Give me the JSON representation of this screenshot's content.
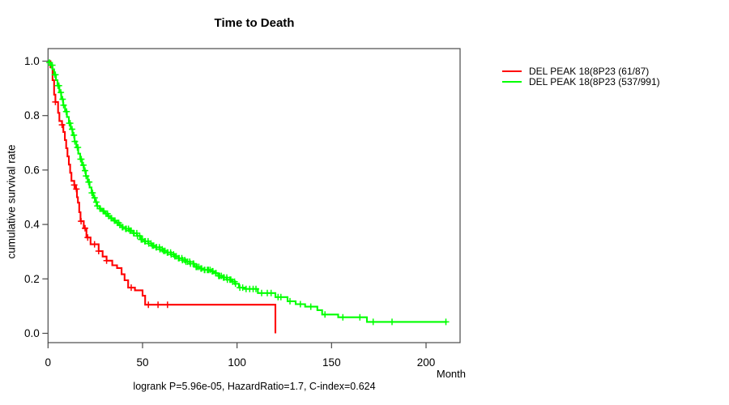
{
  "chart_data": {
    "type": "line",
    "subtype": "kaplan-meier-step",
    "title": "Time to Death",
    "xlabel": "Month",
    "ylabel": "cumulative survival rate",
    "footnote": "logrank P=5.96e-05, HazardRatio=1.7, C-index=0.624",
    "xlim": [
      0,
      218
    ],
    "ylim": [
      0,
      1
    ],
    "x_ticks": [
      0,
      50,
      100,
      150,
      200
    ],
    "y_ticks": [
      0.0,
      0.2,
      0.4,
      0.6,
      0.8,
      1.0
    ],
    "grid": false,
    "legend_position": "right-outside",
    "axis_color": "#4a4a4a",
    "series": [
      {
        "name": "DEL PEAK 18(8P23 (61/87)",
        "color": "#ff0000",
        "steps": [
          [
            0,
            1
          ],
          [
            1.3,
            0.977
          ],
          [
            2.4,
            0.93
          ],
          [
            3.2,
            0.877
          ],
          [
            3.9,
            0.85
          ],
          [
            5.3,
            0.81
          ],
          [
            6,
            0.78
          ],
          [
            7.4,
            0.766
          ],
          [
            8.1,
            0.74
          ],
          [
            8.9,
            0.71
          ],
          [
            9.6,
            0.68
          ],
          [
            10.3,
            0.65
          ],
          [
            11,
            0.62
          ],
          [
            11.7,
            0.59
          ],
          [
            12.4,
            0.56
          ],
          [
            13.9,
            0.545
          ],
          [
            14.6,
            0.53
          ],
          [
            15.3,
            0.5
          ],
          [
            15.8,
            0.48
          ],
          [
            16.5,
            0.445
          ],
          [
            17.2,
            0.412
          ],
          [
            18.9,
            0.386
          ],
          [
            20.3,
            0.352
          ],
          [
            22.5,
            0.327
          ],
          [
            26.8,
            0.302
          ],
          [
            28.9,
            0.282
          ],
          [
            31,
            0.267
          ],
          [
            34,
            0.25
          ],
          [
            36.5,
            0.24
          ],
          [
            38.9,
            0.217
          ],
          [
            40.5,
            0.195
          ],
          [
            42.4,
            0.168
          ],
          [
            46,
            0.158
          ],
          [
            50,
            0.138
          ],
          [
            51.4,
            0.105
          ],
          [
            120.3,
            0
          ]
        ],
        "censor_times": [
          3.9,
          7.4,
          13.9,
          15,
          17.5,
          19.6,
          21,
          24.6,
          26.8,
          31,
          44,
          53.1,
          58.2,
          63.2
        ]
      },
      {
        "name": "DEL PEAK 18(8P23 (537/991)",
        "color": "#00ff00",
        "steps": [
          [
            0,
            1
          ],
          [
            0.7,
            0.995
          ],
          [
            1.5,
            0.985
          ],
          [
            2.3,
            0.97
          ],
          [
            3.2,
            0.95
          ],
          [
            4.2,
            0.93
          ],
          [
            5,
            0.91
          ],
          [
            6,
            0.885
          ],
          [
            7,
            0.86
          ],
          [
            8,
            0.838
          ],
          [
            9,
            0.815
          ],
          [
            10,
            0.795
          ],
          [
            11,
            0.772
          ],
          [
            12,
            0.75
          ],
          [
            13,
            0.728
          ],
          [
            14,
            0.705
          ],
          [
            15,
            0.683
          ],
          [
            16,
            0.66
          ],
          [
            17,
            0.64
          ],
          [
            18,
            0.618
          ],
          [
            19,
            0.598
          ],
          [
            20,
            0.578
          ],
          [
            21,
            0.556
          ],
          [
            22,
            0.536
          ],
          [
            23,
            0.516
          ],
          [
            24,
            0.498
          ],
          [
            25,
            0.482
          ],
          [
            26,
            0.468
          ],
          [
            27.2,
            0.458
          ],
          [
            28.5,
            0.449
          ],
          [
            30,
            0.44
          ],
          [
            31.5,
            0.431
          ],
          [
            33,
            0.423
          ],
          [
            34.5,
            0.414
          ],
          [
            36,
            0.406
          ],
          [
            37.5,
            0.398
          ],
          [
            39,
            0.39
          ],
          [
            41,
            0.384
          ],
          [
            43,
            0.377
          ],
          [
            45,
            0.368
          ],
          [
            47,
            0.358
          ],
          [
            49,
            0.345
          ],
          [
            51,
            0.338
          ],
          [
            53,
            0.33
          ],
          [
            55,
            0.322
          ],
          [
            57,
            0.316
          ],
          [
            59,
            0.309
          ],
          [
            61,
            0.303
          ],
          [
            63,
            0.297
          ],
          [
            65,
            0.29
          ],
          [
            67,
            0.283
          ],
          [
            69,
            0.276
          ],
          [
            71,
            0.269
          ],
          [
            73,
            0.263
          ],
          [
            75,
            0.256
          ],
          [
            77.5,
            0.244
          ],
          [
            80,
            0.238
          ],
          [
            82.5,
            0.233
          ],
          [
            86,
            0.228
          ],
          [
            88,
            0.221
          ],
          [
            90,
            0.211
          ],
          [
            92,
            0.205
          ],
          [
            94.6,
            0.197
          ],
          [
            97,
            0.19
          ],
          [
            98.9,
            0.182
          ],
          [
            101,
            0.168
          ],
          [
            104,
            0.163
          ],
          [
            111,
            0.148
          ],
          [
            120.3,
            0.133
          ],
          [
            126.7,
            0.118
          ],
          [
            131,
            0.107
          ],
          [
            136,
            0.098
          ],
          [
            142.5,
            0.085
          ],
          [
            145,
            0.069
          ],
          [
            153.5,
            0.059
          ],
          [
            168.7,
            0.042
          ],
          [
            211,
            0.042
          ]
        ],
        "censor_times": [
          101.5,
          103,
          104.8,
          106.7,
          108.5,
          110,
          113,
          116,
          118,
          121.7,
          123.2,
          128,
          133.5,
          139,
          146.5,
          156,
          165,
          172,
          182,
          210.5
        ],
        "censor_dense_range": [
          0.8,
          100,
          0.85
        ]
      }
    ]
  }
}
